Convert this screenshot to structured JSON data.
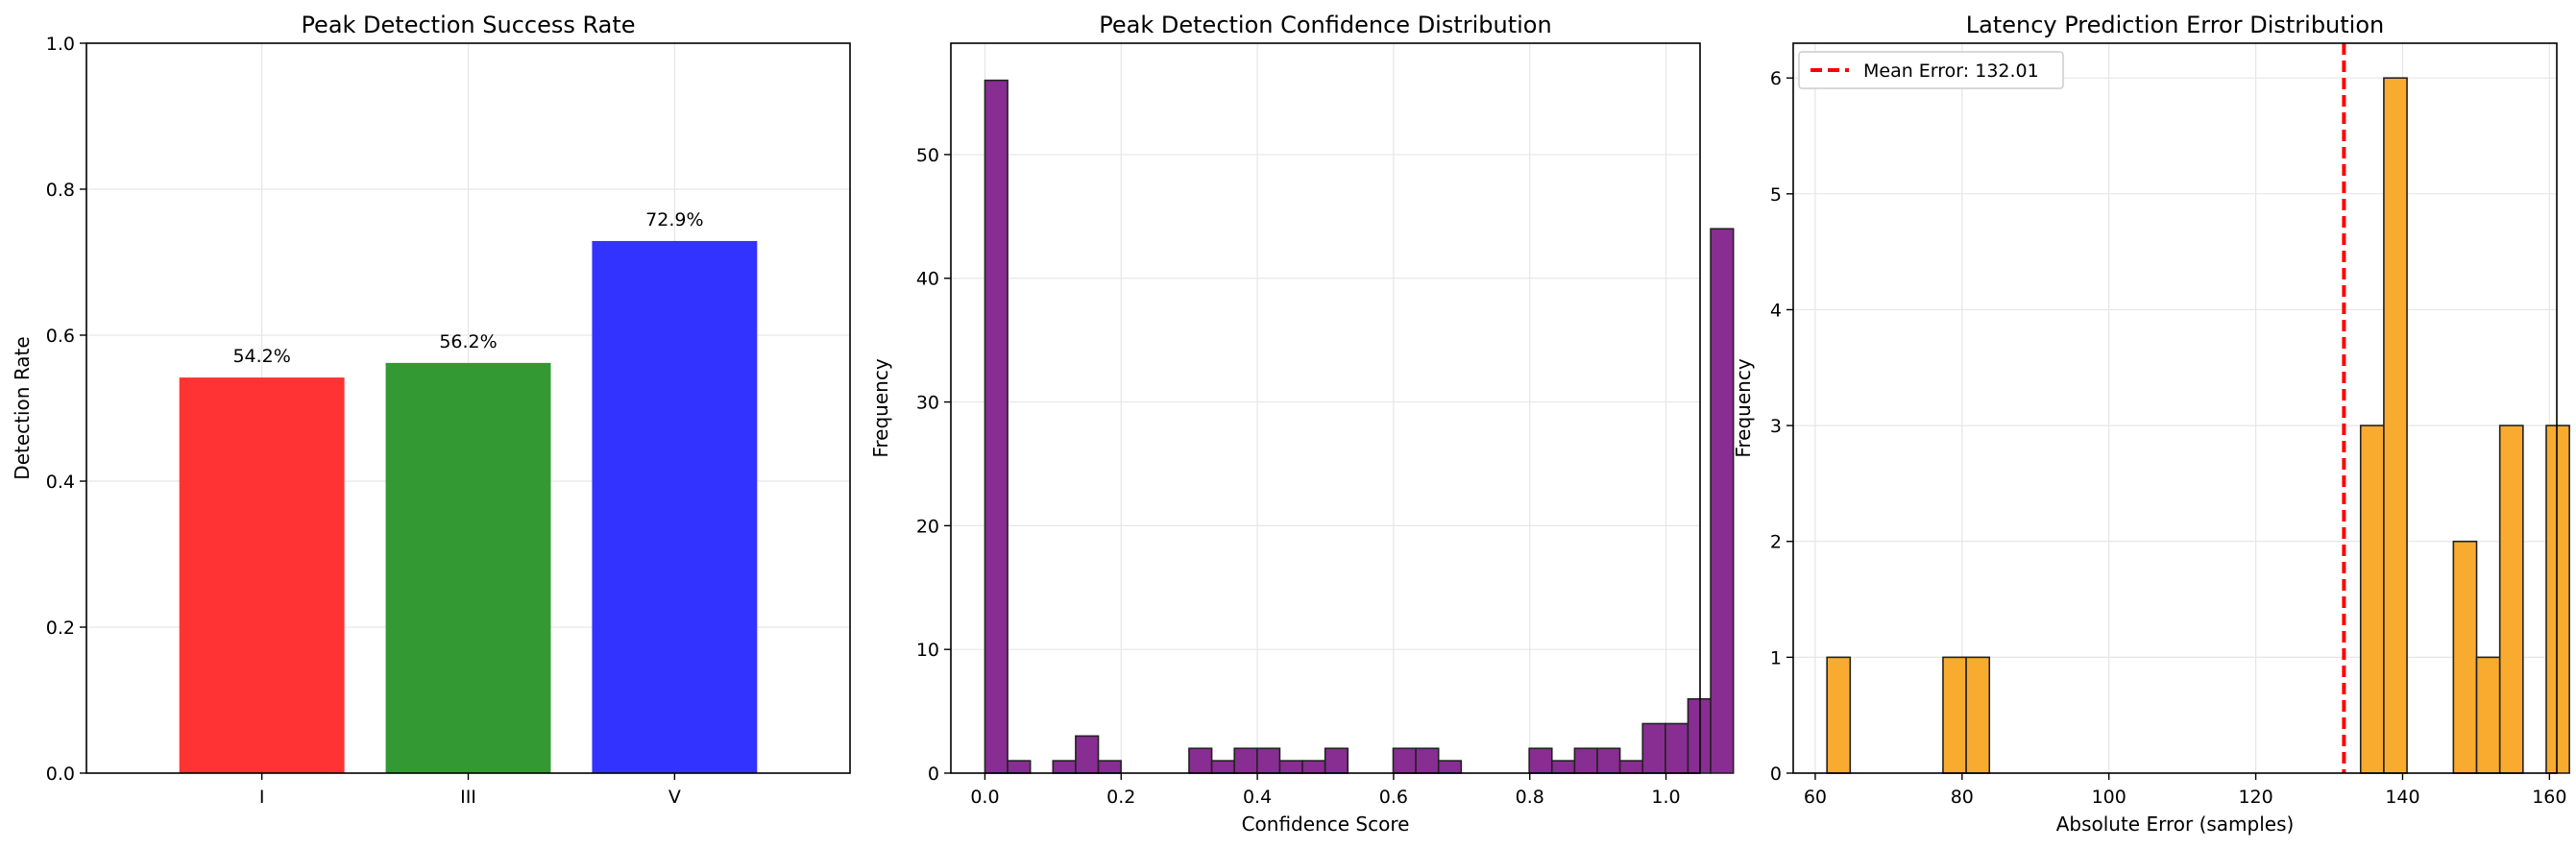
{
  "chart_data": [
    {
      "type": "bar",
      "title": "Peak Detection Success Rate",
      "xlabel": "",
      "ylabel": "Detection Rate",
      "categories": [
        "I",
        "III",
        "V"
      ],
      "values": [
        0.542,
        0.562,
        0.729
      ],
      "value_labels": [
        "54.2%",
        "56.2%",
        "72.9%"
      ],
      "colors": [
        "#ff3333",
        "#339933",
        "#3333ff"
      ],
      "ylim": [
        0,
        1.0
      ],
      "yticks": [
        0.0,
        0.2,
        0.4,
        0.6,
        0.8,
        1.0
      ],
      "ytick_labels": [
        "0.0",
        "0.2",
        "0.4",
        "0.6",
        "0.8",
        "1.0"
      ],
      "grid": true
    },
    {
      "type": "histogram",
      "title": "Peak Detection Confidence Distribution",
      "xlabel": "Confidence Score",
      "ylabel": "Frequency",
      "color": "#882d91",
      "bin_start": 0.0,
      "bin_width": 0.0333,
      "counts": [
        56,
        1,
        0,
        1,
        3,
        1,
        0,
        0,
        0,
        2,
        1,
        2,
        2,
        1,
        1,
        2,
        0,
        0,
        2,
        2,
        1,
        0,
        0,
        0,
        2,
        1,
        2,
        2,
        1,
        4,
        4,
        6,
        44
      ],
      "xlim": [
        -0.05,
        1.05
      ],
      "ylim": [
        0,
        59
      ],
      "xticks": [
        0.0,
        0.2,
        0.4,
        0.6,
        0.8,
        1.0
      ],
      "xtick_labels": [
        "0.0",
        "0.2",
        "0.4",
        "0.6",
        "0.8",
        "1.0"
      ],
      "yticks": [
        0,
        10,
        20,
        30,
        40,
        50
      ],
      "ytick_labels": [
        "0",
        "10",
        "20",
        "30",
        "40",
        "50"
      ],
      "grid": true
    },
    {
      "type": "histogram",
      "title": "Latency Prediction Error Distribution",
      "xlabel": "Absolute Error (samples)",
      "ylabel": "Frequency",
      "color": "#f8ab2f",
      "bin_start": 61.6,
      "bin_width": 3.16,
      "counts": [
        1,
        0,
        0,
        0,
        0,
        1,
        1,
        0,
        0,
        0,
        0,
        0,
        0,
        0,
        0,
        0,
        0,
        0,
        0,
        0,
        0,
        0,
        0,
        3,
        6,
        0,
        0,
        2,
        1,
        3,
        0,
        3
      ],
      "xlim": [
        57,
        161
      ],
      "ylim": [
        0,
        6.3
      ],
      "xticks": [
        60,
        80,
        100,
        120,
        140,
        160
      ],
      "xtick_labels": [
        "60",
        "80",
        "100",
        "120",
        "140",
        "160"
      ],
      "yticks": [
        0,
        1,
        2,
        3,
        4,
        5,
        6
      ],
      "ytick_labels": [
        "0",
        "1",
        "2",
        "3",
        "4",
        "5",
        "6"
      ],
      "mean_line": {
        "value": 132.01,
        "color": "#ff0000",
        "label": "Mean Error: 132.01"
      },
      "legend": "upper-left",
      "grid": true
    }
  ]
}
